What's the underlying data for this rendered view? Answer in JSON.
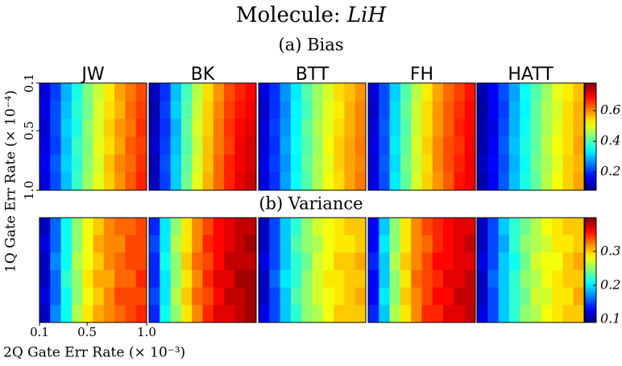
{
  "title": {
    "text": "Molecule:",
    "molecule": "LiH"
  },
  "chart_data": [
    {
      "type": "heatmap",
      "title": "(a) Bias",
      "ylabel": "1Q Gate Err Rate (× 10⁻⁴)",
      "ylim": [
        0.1,
        1.0
      ],
      "yticks": [
        0.1,
        0.5,
        {
          "value": 1.0,
          "label": "1.0"
        }
      ],
      "clim": [
        0.08,
        0.78
      ],
      "cticks": [
        0.2,
        0.4,
        0.6
      ],
      "panels": [
        {
          "name": "JW",
          "values": [
            [
              0.14,
              0.21,
              0.29,
              0.36,
              0.43,
              0.48,
              0.53,
              0.58,
              0.61,
              0.64
            ],
            [
              0.15,
              0.22,
              0.3,
              0.37,
              0.42,
              0.49,
              0.54,
              0.57,
              0.62,
              0.65
            ],
            [
              0.14,
              0.22,
              0.31,
              0.36,
              0.44,
              0.49,
              0.55,
              0.59,
              0.61,
              0.66
            ],
            [
              0.15,
              0.21,
              0.3,
              0.38,
              0.43,
              0.5,
              0.54,
              0.58,
              0.63,
              0.65
            ],
            [
              0.16,
              0.23,
              0.31,
              0.37,
              0.44,
              0.49,
              0.56,
              0.6,
              0.62,
              0.66
            ],
            [
              0.15,
              0.22,
              0.3,
              0.38,
              0.45,
              0.5,
              0.55,
              0.59,
              0.63,
              0.67
            ]
          ]
        },
        {
          "name": "BK",
          "values": [
            [
              0.12,
              0.2,
              0.3,
              0.39,
              0.47,
              0.54,
              0.59,
              0.64,
              0.67,
              0.69
            ],
            [
              0.11,
              0.21,
              0.31,
              0.4,
              0.48,
              0.55,
              0.6,
              0.65,
              0.68,
              0.7
            ],
            [
              0.12,
              0.2,
              0.29,
              0.41,
              0.49,
              0.55,
              0.61,
              0.66,
              0.69,
              0.71
            ],
            [
              0.13,
              0.21,
              0.3,
              0.4,
              0.48,
              0.56,
              0.61,
              0.65,
              0.7,
              0.72
            ],
            [
              0.12,
              0.22,
              0.31,
              0.41,
              0.49,
              0.56,
              0.62,
              0.67,
              0.7,
              0.72
            ],
            [
              0.12,
              0.21,
              0.31,
              0.42,
              0.5,
              0.57,
              0.62,
              0.67,
              0.71,
              0.73
            ]
          ]
        },
        {
          "name": "BTT",
          "values": [
            [
              0.14,
              0.2,
              0.27,
              0.33,
              0.4,
              0.45,
              0.49,
              0.54,
              0.56,
              0.59
            ],
            [
              0.13,
              0.2,
              0.26,
              0.34,
              0.39,
              0.45,
              0.5,
              0.53,
              0.57,
              0.6
            ],
            [
              0.14,
              0.21,
              0.27,
              0.34,
              0.41,
              0.46,
              0.5,
              0.54,
              0.57,
              0.6
            ],
            [
              0.14,
              0.2,
              0.28,
              0.35,
              0.4,
              0.45,
              0.51,
              0.55,
              0.58,
              0.61
            ],
            [
              0.15,
              0.21,
              0.27,
              0.34,
              0.41,
              0.46,
              0.5,
              0.55,
              0.58,
              0.6
            ],
            [
              0.14,
              0.2,
              0.28,
              0.35,
              0.4,
              0.46,
              0.51,
              0.54,
              0.58,
              0.61
            ]
          ]
        },
        {
          "name": "FH",
          "values": [
            [
              0.14,
              0.22,
              0.31,
              0.4,
              0.47,
              0.53,
              0.58,
              0.62,
              0.65,
              0.68
            ],
            [
              0.13,
              0.22,
              0.32,
              0.41,
              0.48,
              0.54,
              0.59,
              0.63,
              0.66,
              0.69
            ],
            [
              0.14,
              0.23,
              0.32,
              0.4,
              0.48,
              0.54,
              0.59,
              0.63,
              0.67,
              0.69
            ],
            [
              0.15,
              0.22,
              0.33,
              0.41,
              0.49,
              0.55,
              0.6,
              0.64,
              0.66,
              0.7
            ],
            [
              0.14,
              0.23,
              0.32,
              0.42,
              0.48,
              0.54,
              0.6,
              0.64,
              0.67,
              0.7
            ],
            [
              0.15,
              0.22,
              0.33,
              0.41,
              0.49,
              0.55,
              0.59,
              0.63,
              0.68,
              0.7
            ]
          ]
        },
        {
          "name": "HATT",
          "values": [
            [
              0.11,
              0.16,
              0.22,
              0.28,
              0.35,
              0.4,
              0.45,
              0.5,
              0.53,
              0.56
            ],
            [
              0.1,
              0.16,
              0.21,
              0.29,
              0.34,
              0.41,
              0.46,
              0.49,
              0.54,
              0.57
            ],
            [
              0.11,
              0.15,
              0.22,
              0.29,
              0.35,
              0.41,
              0.46,
              0.5,
              0.54,
              0.57
            ],
            [
              0.11,
              0.16,
              0.23,
              0.3,
              0.36,
              0.41,
              0.47,
              0.51,
              0.54,
              0.58
            ],
            [
              0.12,
              0.17,
              0.22,
              0.29,
              0.35,
              0.42,
              0.46,
              0.5,
              0.55,
              0.57
            ],
            [
              0.11,
              0.16,
              0.23,
              0.3,
              0.36,
              0.41,
              0.47,
              0.51,
              0.55,
              0.58
            ]
          ]
        }
      ]
    },
    {
      "type": "heatmap",
      "title": "(b) Variance",
      "xlabel": "2Q Gate Err Rate (× 10⁻³)",
      "xlim": [
        0.1,
        1.0
      ],
      "xticks": [
        0.1,
        0.5,
        {
          "value": 1.0,
          "label": "1.0"
        }
      ],
      "clim": [
        0.09,
        0.4
      ],
      "cticks": [
        0.1,
        0.2,
        0.3
      ],
      "panels": [
        {
          "name": "JW",
          "values": [
            [
              0.11,
              0.16,
              0.21,
              0.25,
              0.28,
              0.3,
              0.32,
              0.33,
              0.33,
              0.34
            ],
            [
              0.12,
              0.16,
              0.21,
              0.25,
              0.28,
              0.31,
              0.32,
              0.32,
              0.34,
              0.34
            ],
            [
              0.11,
              0.17,
              0.21,
              0.26,
              0.28,
              0.3,
              0.32,
              0.33,
              0.34,
              0.34
            ],
            [
              0.11,
              0.16,
              0.22,
              0.25,
              0.29,
              0.31,
              0.31,
              0.33,
              0.33,
              0.35
            ],
            [
              0.12,
              0.16,
              0.21,
              0.25,
              0.28,
              0.3,
              0.32,
              0.34,
              0.34,
              0.34
            ],
            [
              0.11,
              0.17,
              0.21,
              0.26,
              0.29,
              0.31,
              0.32,
              0.33,
              0.34,
              0.35
            ]
          ]
        },
        {
          "name": "BK",
          "values": [
            [
              0.14,
              0.2,
              0.25,
              0.29,
              0.32,
              0.34,
              0.36,
              0.37,
              0.38,
              0.38
            ],
            [
              0.15,
              0.2,
              0.26,
              0.29,
              0.32,
              0.35,
              0.36,
              0.37,
              0.38,
              0.39
            ],
            [
              0.14,
              0.21,
              0.25,
              0.3,
              0.33,
              0.34,
              0.36,
              0.38,
              0.38,
              0.38
            ],
            [
              0.14,
              0.2,
              0.25,
              0.29,
              0.32,
              0.35,
              0.37,
              0.37,
              0.39,
              0.39
            ],
            [
              0.15,
              0.2,
              0.26,
              0.3,
              0.33,
              0.34,
              0.36,
              0.38,
              0.38,
              0.39
            ],
            [
              0.14,
              0.21,
              0.25,
              0.29,
              0.32,
              0.35,
              0.37,
              0.37,
              0.38,
              0.39
            ]
          ]
        },
        {
          "name": "BTT",
          "values": [
            [
              0.11,
              0.15,
              0.19,
              0.22,
              0.25,
              0.27,
              0.28,
              0.29,
              0.3,
              0.3
            ],
            [
              0.11,
              0.15,
              0.19,
              0.23,
              0.25,
              0.26,
              0.28,
              0.29,
              0.29,
              0.3
            ],
            [
              0.12,
              0.15,
              0.19,
              0.22,
              0.24,
              0.27,
              0.28,
              0.3,
              0.3,
              0.31
            ],
            [
              0.11,
              0.16,
              0.2,
              0.22,
              0.25,
              0.27,
              0.29,
              0.29,
              0.3,
              0.3
            ],
            [
              0.11,
              0.15,
              0.19,
              0.23,
              0.25,
              0.27,
              0.28,
              0.29,
              0.3,
              0.31
            ],
            [
              0.12,
              0.15,
              0.19,
              0.22,
              0.25,
              0.26,
              0.28,
              0.3,
              0.3,
              0.3
            ]
          ]
        },
        {
          "name": "FH",
          "values": [
            [
              0.13,
              0.19,
              0.25,
              0.29,
              0.32,
              0.34,
              0.35,
              0.36,
              0.37,
              0.37
            ],
            [
              0.13,
              0.2,
              0.25,
              0.29,
              0.32,
              0.33,
              0.35,
              0.36,
              0.37,
              0.38
            ],
            [
              0.14,
              0.19,
              0.26,
              0.3,
              0.32,
              0.34,
              0.36,
              0.36,
              0.37,
              0.37
            ],
            [
              0.13,
              0.19,
              0.25,
              0.29,
              0.33,
              0.34,
              0.35,
              0.37,
              0.37,
              0.38
            ],
            [
              0.13,
              0.2,
              0.25,
              0.3,
              0.32,
              0.34,
              0.36,
              0.36,
              0.38,
              0.38
            ],
            [
              0.14,
              0.19,
              0.26,
              0.29,
              0.32,
              0.35,
              0.35,
              0.37,
              0.37,
              0.38
            ]
          ]
        },
        {
          "name": "HATT",
          "values": [
            [
              0.11,
              0.15,
              0.19,
              0.22,
              0.24,
              0.26,
              0.28,
              0.29,
              0.3,
              0.3
            ],
            [
              0.11,
              0.15,
              0.18,
              0.22,
              0.25,
              0.26,
              0.27,
              0.29,
              0.29,
              0.3
            ],
            [
              0.12,
              0.15,
              0.19,
              0.21,
              0.24,
              0.27,
              0.28,
              0.28,
              0.3,
              0.31
            ],
            [
              0.11,
              0.16,
              0.19,
              0.22,
              0.25,
              0.26,
              0.28,
              0.29,
              0.3,
              0.3
            ],
            [
              0.11,
              0.15,
              0.19,
              0.22,
              0.24,
              0.27,
              0.27,
              0.29,
              0.29,
              0.31
            ],
            [
              0.12,
              0.15,
              0.19,
              0.22,
              0.25,
              0.26,
              0.28,
              0.29,
              0.3,
              0.3
            ]
          ]
        }
      ]
    }
  ]
}
